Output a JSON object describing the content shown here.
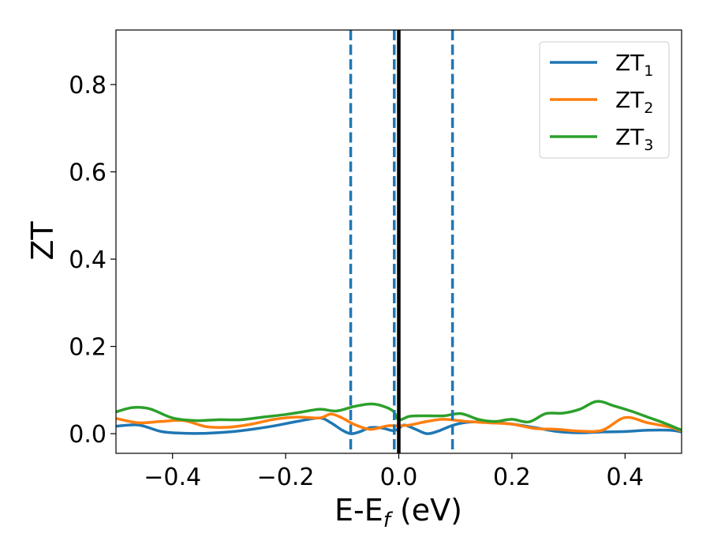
{
  "chart_data": {
    "type": "line",
    "xlabel": "E-E",
    "xlabel_sub": "f",
    "xlabel_unit": " (eV)",
    "ylabel": "ZT",
    "xlim": [
      -0.5,
      0.5
    ],
    "ylim": [
      -0.045,
      0.925
    ],
    "xticks": [
      -0.4,
      -0.2,
      0.0,
      0.2,
      0.4
    ],
    "xtick_labels": [
      "−0.4",
      "−0.2",
      "0.0",
      "0.2",
      "0.4"
    ],
    "yticks": [
      0.0,
      0.2,
      0.4,
      0.6,
      0.8
    ],
    "ytick_labels": [
      "0.0",
      "0.2",
      "0.4",
      "0.6",
      "0.8"
    ],
    "grid": false,
    "legend_position": "top-right",
    "vertical_lines": [
      {
        "x": -0.085,
        "style": "dashed",
        "color": "#1f77b4"
      },
      {
        "x": -0.008,
        "style": "dashed",
        "color": "#1f77b4"
      },
      {
        "x": 0.095,
        "style": "dashed",
        "color": "#1f77b4"
      },
      {
        "x": 0.0,
        "style": "solid",
        "color": "#000000"
      }
    ],
    "series": [
      {
        "name": "ZT",
        "name_sub": "1",
        "color": "#1f77b4",
        "x": [
          -0.5,
          -0.46,
          -0.42,
          -0.38,
          -0.34,
          -0.3,
          -0.26,
          -0.22,
          -0.18,
          -0.14,
          -0.12,
          -0.1,
          -0.085,
          -0.07,
          -0.05,
          -0.03,
          -0.01,
          0.0,
          0.01,
          0.03,
          0.05,
          0.07,
          0.095,
          0.12,
          0.15,
          0.2,
          0.24,
          0.28,
          0.32,
          0.36,
          0.4,
          0.44,
          0.48,
          0.5
        ],
        "y": [
          0.017,
          0.02,
          0.005,
          0.001,
          0.001,
          0.004,
          0.01,
          0.018,
          0.028,
          0.036,
          0.025,
          0.008,
          0.0,
          0.004,
          0.014,
          0.013,
          0.007,
          0.012,
          0.02,
          0.01,
          0.0,
          0.006,
          0.019,
          0.026,
          0.027,
          0.022,
          0.014,
          0.005,
          0.002,
          0.004,
          0.005,
          0.008,
          0.008,
          0.004
        ]
      },
      {
        "name": "ZT",
        "name_sub": "2",
        "color": "#ff7f0e",
        "x": [
          -0.5,
          -0.46,
          -0.42,
          -0.38,
          -0.34,
          -0.3,
          -0.26,
          -0.22,
          -0.18,
          -0.14,
          -0.12,
          -0.1,
          -0.08,
          -0.05,
          -0.02,
          0.0,
          0.02,
          0.05,
          0.08,
          0.12,
          0.16,
          0.2,
          0.24,
          0.28,
          0.32,
          0.36,
          0.4,
          0.44,
          0.48,
          0.5
        ],
        "y": [
          0.035,
          0.025,
          0.028,
          0.03,
          0.016,
          0.015,
          0.022,
          0.033,
          0.038,
          0.036,
          0.045,
          0.036,
          0.022,
          0.01,
          0.018,
          0.018,
          0.02,
          0.028,
          0.033,
          0.028,
          0.025,
          0.022,
          0.012,
          0.01,
          0.006,
          0.008,
          0.037,
          0.025,
          0.015,
          0.006
        ]
      },
      {
        "name": "ZT",
        "name_sub": "3",
        "color": "#2ca02c",
        "x": [
          -0.5,
          -0.47,
          -0.44,
          -0.4,
          -0.36,
          -0.32,
          -0.28,
          -0.24,
          -0.2,
          -0.17,
          -0.14,
          -0.11,
          -0.08,
          -0.05,
          -0.03,
          -0.01,
          0.0,
          0.02,
          0.05,
          0.08,
          0.11,
          0.14,
          0.17,
          0.2,
          0.23,
          0.26,
          0.29,
          0.32,
          0.35,
          0.38,
          0.41,
          0.44,
          0.47,
          0.5
        ],
        "y": [
          0.05,
          0.06,
          0.057,
          0.036,
          0.03,
          0.032,
          0.032,
          0.038,
          0.044,
          0.05,
          0.056,
          0.052,
          0.062,
          0.068,
          0.064,
          0.052,
          0.032,
          0.04,
          0.041,
          0.041,
          0.046,
          0.033,
          0.028,
          0.033,
          0.027,
          0.046,
          0.047,
          0.056,
          0.074,
          0.064,
          0.052,
          0.038,
          0.024,
          0.008
        ]
      }
    ]
  }
}
